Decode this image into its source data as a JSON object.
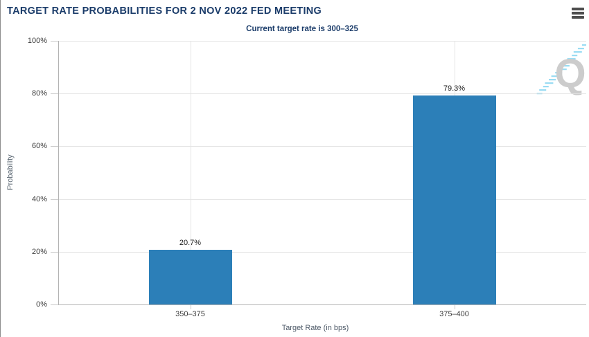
{
  "header": {
    "title": "TARGET RATE PROBABILITIES FOR 2 NOV 2022 FED MEETING",
    "subtitle": "Current target rate is 300–325",
    "menu_icon": "hamburger-icon"
  },
  "watermark": {
    "letter": "Q",
    "style": "gray letter with light-blue diagonal hatch stripe"
  },
  "chart_data": {
    "type": "bar",
    "title": "TARGET RATE PROBABILITIES FOR 2 NOV 2022 FED MEETING",
    "subtitle": "Current target rate is 300–325",
    "categories": [
      "350–375",
      "375–400"
    ],
    "values": [
      20.7,
      79.3
    ],
    "value_labels": [
      "20.7%",
      "79.3%"
    ],
    "xlabel": "Target Rate (in bps)",
    "ylabel": "Probability",
    "ylim": [
      0,
      100
    ],
    "ytick_step": 20,
    "ytick_labels": [
      "0%",
      "20%",
      "40%",
      "60%",
      "80%",
      "100%"
    ],
    "grid": true,
    "legend": "none"
  },
  "colors": {
    "title_navy": "#1b3c6a",
    "bar_blue": "#2c7fb8",
    "grid_gray": "#e3e3e3",
    "axis_gray": "#b3b3b3",
    "tick_gray": "#c9c9c9",
    "tick_label": "#3d3d3d",
    "axis_title": "#5f6b76",
    "data_label": "#1a1a1a",
    "menu_icon": "#4d4d4d",
    "watermark_gray": "#cccccc",
    "watermark_blue": "#9adcf3"
  }
}
